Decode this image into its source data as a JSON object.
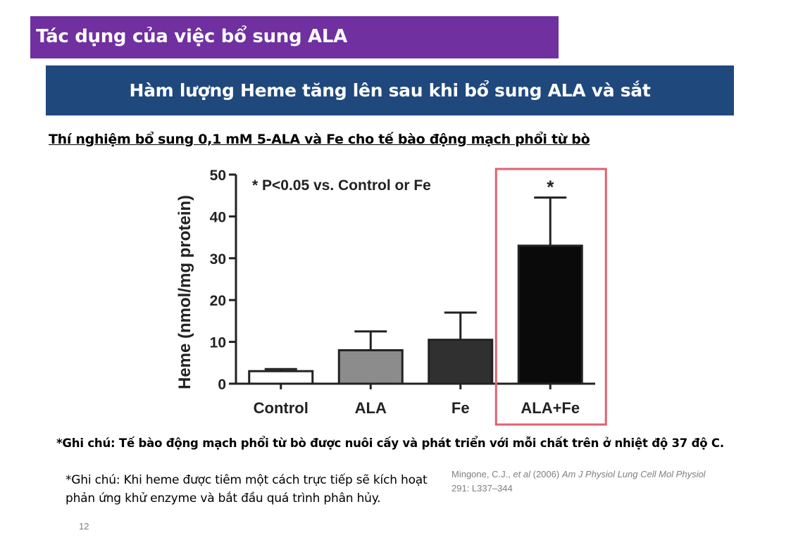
{
  "header": {
    "title": "Tác dụng của việc bổ sung ALA",
    "subtitle": "Hàm lượng Heme tăng lên sau khi bổ sung ALA và sắt",
    "experiment": "Thí nghiệm bổ sung 0,1 mM 5-ALA và Fe cho tế bào động mạch phổi từ bò"
  },
  "chart_data": {
    "type": "bar",
    "categories": [
      "Control",
      "ALA",
      "Fe",
      "ALA+Fe"
    ],
    "values": [
      3,
      8,
      10.5,
      33
    ],
    "errors": [
      0.5,
      4.5,
      6.5,
      11.5
    ],
    "colors": [
      "#ffffff",
      "#8c8c8c",
      "#303030",
      "#0a0a0a"
    ],
    "significance": [
      "",
      "",
      "",
      "*"
    ],
    "annotation": "* P<0.05 vs. Control or Fe",
    "ylabel": "Heme (nmol/mg protein)",
    "yticks": [
      0,
      10,
      20,
      30,
      40,
      50
    ],
    "ylim": [
      0,
      50
    ],
    "highlight_category": "ALA+Fe",
    "highlight_color": "#e06070"
  },
  "notes": {
    "note1": "*Ghi chú: Tế bào động mạch phổi từ bò được nuôi cấy và phát triển với mỗi chất trên ở nhiệt độ 37 độ C.",
    "note2": "*Ghi chú: Khi heme được tiêm một cách trực tiếp sẽ kích hoạt phản ứng khử enzyme và bắt đầu quá trình phân hủy."
  },
  "citation": {
    "authors": "Mingone, C.J., ",
    "etal": "et al",
    "year": " (2006) ",
    "journal": "Am J Physiol Lung Cell Mol Physiol",
    "pages": "291: L337–344"
  },
  "page_number": "12"
}
